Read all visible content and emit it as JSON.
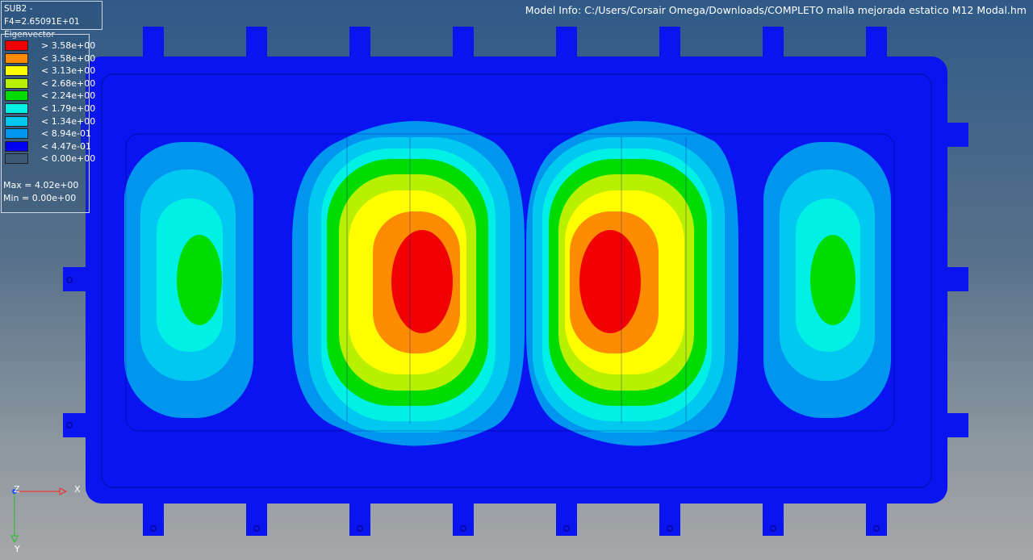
{
  "header": {
    "subcase": "SUB2 - F4=2.65091E+01",
    "result_type": "Eigenvector",
    "model_info": "Model Info: C:/Users/Corsair Omega/Downloads/COMPLETO malla mejorada estatico M12 Modal.hm"
  },
  "legend": {
    "entries": [
      {
        "label": "> 3.58e+00",
        "color": "#f00000"
      },
      {
        "label": "< 3.58e+00",
        "color": "#ff8c00"
      },
      {
        "label": "< 3.13e+00",
        "color": "#ffff00"
      },
      {
        "label": "< 2.68e+00",
        "color": "#b9f000"
      },
      {
        "label": "< 2.24e+00",
        "color": "#00dc00"
      },
      {
        "label": "< 1.79e+00",
        "color": "#00f0e6"
      },
      {
        "label": "< 1.34e+00",
        "color": "#00c8f0"
      },
      {
        "label": "< 8.94e-01",
        "color": "#0096f0"
      },
      {
        "label": "< 4.47e-01",
        "color": "#0000f0"
      },
      {
        "label": "< 0.00e+00",
        "color": "#3a5a78"
      }
    ],
    "max": "Max = 4.02e+00",
    "min": "Min = 0.00e+00"
  },
  "axes": {
    "x": "X",
    "y": "Y",
    "z": "Z"
  },
  "colors": {
    "plate": "#0a14f0",
    "red": "#f00000",
    "orange": "#ff8c00",
    "yellow": "#ffff00",
    "lime": "#b9f000",
    "green": "#00dc00",
    "aqua": "#00f0e6",
    "cyan": "#00c8f0",
    "azure": "#0096f0"
  }
}
